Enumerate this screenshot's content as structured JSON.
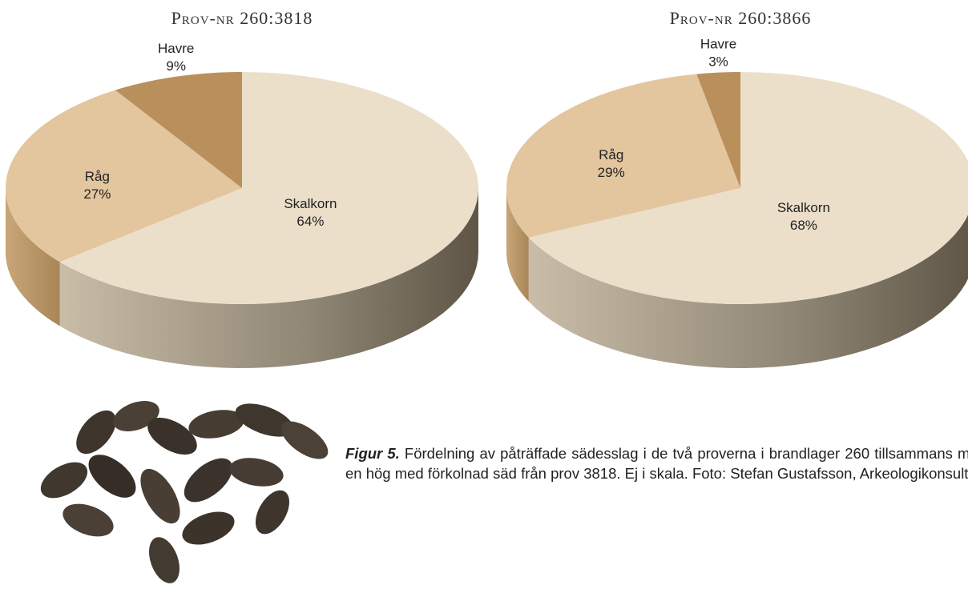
{
  "chart_data": [
    {
      "type": "pie",
      "title": "Prov-nr 260:3818",
      "categories": [
        "Skalkorn",
        "Råg",
        "Havre"
      ],
      "values": [
        64,
        27,
        9
      ],
      "value_labels": [
        "64%",
        "27%",
        "9%"
      ],
      "colors": [
        "#ebdfca",
        "#e3c59e",
        "#b98f5c"
      ]
    },
    {
      "type": "pie",
      "title": "Prov-nr 260:3866",
      "categories": [
        "Skalkorn",
        "Råg",
        "Havre"
      ],
      "values": [
        68,
        29,
        3
      ],
      "value_labels": [
        "68%",
        "29%",
        "3%"
      ],
      "colors": [
        "#ebdfca",
        "#e3c59e",
        "#b98f5c"
      ]
    }
  ],
  "caption": {
    "label": "Figur 5.",
    "text": "Fördelning av påträffade sädesslag i de två proverna i brandlager 260 tillsammans med en hög med förkolnad säd från prov 3818. Ej i skala. Foto: Stefan Gustafsson, Arkeologikonsult."
  }
}
